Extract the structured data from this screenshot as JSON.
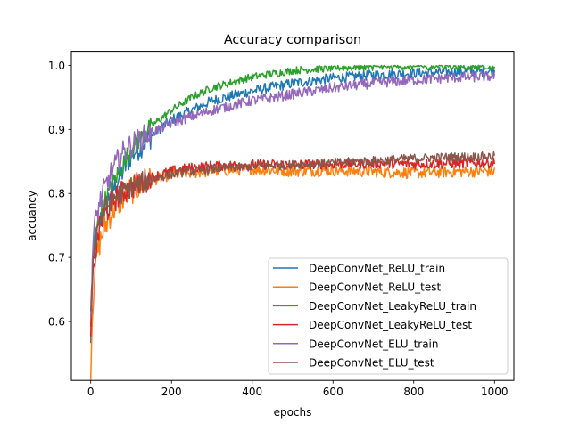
{
  "chart_data": {
    "type": "line",
    "title": "Accuracy comparison",
    "xlabel": "epochs",
    "ylabel": "accuancy",
    "xlim": [
      -48,
      1048
    ],
    "ylim": [
      0.508,
      1.022
    ],
    "xticks": [
      0,
      200,
      400,
      600,
      800,
      1000
    ],
    "yticks": [
      0.6,
      0.7,
      0.8,
      0.9,
      1.0
    ],
    "xtick_labels": [
      "0",
      "200",
      "400",
      "600",
      "800",
      "1000"
    ],
    "ytick_labels": [
      "0.6",
      "0.7",
      "0.8",
      "0.9",
      "1.0"
    ],
    "grid": false,
    "legend_position": "lower right",
    "series": [
      {
        "name": "DeepConvNet_ReLU_train",
        "color": "#1f77b4",
        "x": [
          0,
          5,
          10,
          20,
          30,
          50,
          75,
          100,
          150,
          200,
          250,
          300,
          400,
          500,
          600,
          700,
          800,
          900,
          1000
        ],
        "y": [
          0.56,
          0.69,
          0.72,
          0.75,
          0.77,
          0.8,
          0.83,
          0.86,
          0.89,
          0.915,
          0.93,
          0.945,
          0.96,
          0.972,
          0.98,
          0.985,
          0.988,
          0.99,
          0.991
        ],
        "noise": 0.008
      },
      {
        "name": "DeepConvNet_ReLU_test",
        "color": "#ff7f0e",
        "x": [
          0,
          5,
          10,
          20,
          30,
          50,
          75,
          100,
          150,
          200,
          250,
          300,
          400,
          500,
          600,
          700,
          800,
          900,
          1000
        ],
        "y": [
          0.53,
          0.63,
          0.68,
          0.72,
          0.74,
          0.77,
          0.79,
          0.805,
          0.82,
          0.83,
          0.832,
          0.835,
          0.838,
          0.835,
          0.836,
          0.834,
          0.832,
          0.834,
          0.835
        ],
        "noise": 0.009
      },
      {
        "name": "DeepConvNet_LeakyReLU_train",
        "color": "#2ca02c",
        "x": [
          0,
          5,
          10,
          20,
          30,
          50,
          75,
          100,
          150,
          200,
          250,
          300,
          400,
          500,
          600,
          700,
          800,
          900,
          1000
        ],
        "y": [
          0.59,
          0.7,
          0.73,
          0.76,
          0.78,
          0.81,
          0.84,
          0.87,
          0.905,
          0.93,
          0.95,
          0.965,
          0.982,
          0.992,
          0.996,
          0.998,
          0.999,
          0.999,
          0.999
        ],
        "noise": 0.006
      },
      {
        "name": "DeepConvNet_LeakyReLU_test",
        "color": "#d62728",
        "x": [
          0,
          5,
          10,
          20,
          30,
          50,
          75,
          100,
          150,
          200,
          250,
          300,
          400,
          500,
          600,
          700,
          800,
          900,
          1000
        ],
        "y": [
          0.58,
          0.66,
          0.7,
          0.74,
          0.76,
          0.785,
          0.8,
          0.81,
          0.825,
          0.835,
          0.84,
          0.843,
          0.845,
          0.845,
          0.846,
          0.847,
          0.846,
          0.847,
          0.848
        ],
        "noise": 0.008
      },
      {
        "name": "DeepConvNet_ELU_train",
        "color": "#9467bd",
        "x": [
          0,
          5,
          10,
          20,
          30,
          50,
          75,
          100,
          150,
          200,
          250,
          300,
          400,
          500,
          600,
          700,
          800,
          900,
          1000
        ],
        "y": [
          0.6,
          0.72,
          0.75,
          0.78,
          0.8,
          0.83,
          0.86,
          0.875,
          0.895,
          0.91,
          0.92,
          0.93,
          0.945,
          0.955,
          0.965,
          0.972,
          0.977,
          0.981,
          0.983
        ],
        "noise": 0.008
      },
      {
        "name": "DeepConvNet_ELU_test",
        "color": "#8c564b",
        "x": [
          0,
          5,
          10,
          20,
          30,
          50,
          75,
          100,
          150,
          200,
          250,
          300,
          400,
          500,
          600,
          700,
          800,
          900,
          1000
        ],
        "y": [
          0.6,
          0.69,
          0.72,
          0.755,
          0.77,
          0.79,
          0.8,
          0.81,
          0.822,
          0.83,
          0.835,
          0.838,
          0.842,
          0.845,
          0.848,
          0.851,
          0.855,
          0.857,
          0.858
        ],
        "noise": 0.007
      }
    ]
  }
}
